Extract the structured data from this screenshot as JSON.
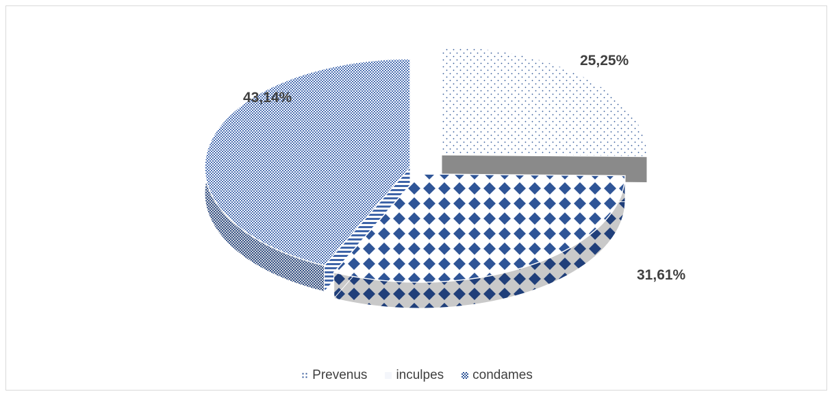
{
  "chart_data": {
    "type": "pie",
    "title": "",
    "categories": [
      "Prevenus",
      "inculpes",
      "condames"
    ],
    "values": [
      25.25,
      31.61,
      43.14
    ],
    "labels": [
      "25,25%",
      "31,61%",
      "43,14%"
    ],
    "unit": "%",
    "legend_position": "bottom",
    "style": "3d-exploded",
    "colors": {
      "Prevenus": "#4472c4",
      "inculpes": "#2f5597",
      "condames": "#5b7fbf"
    }
  }
}
